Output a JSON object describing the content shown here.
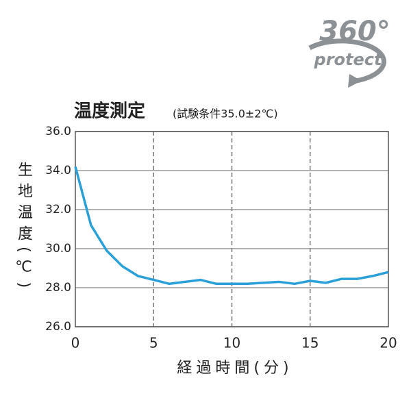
{
  "chart_data": {
    "type": "line",
    "title": "温度測定",
    "subtitle": "(試験条件35.0±2℃)",
    "y_label": "生地温度(℃)",
    "x_label": "経過時間(分)",
    "x": [
      0,
      1,
      2,
      3,
      4,
      5,
      6,
      7,
      8,
      9,
      10,
      11,
      12,
      13,
      14,
      15,
      16,
      17,
      18,
      19,
      20
    ],
    "series": [
      {
        "name": "生地温度",
        "color": "#2a9fd8",
        "values": [
          34.2,
          31.2,
          29.9,
          29.1,
          28.6,
          28.4,
          28.2,
          28.3,
          28.4,
          28.2,
          28.2,
          28.2,
          28.25,
          28.3,
          28.2,
          28.35,
          28.25,
          28.45,
          28.45,
          28.6,
          28.8
        ]
      }
    ],
    "xlim": [
      0,
      20
    ],
    "xticks": [
      0,
      5,
      10,
      15,
      20
    ],
    "ylim": [
      26,
      36
    ],
    "yticks": [
      {
        "value": 26,
        "label": "26.0"
      },
      {
        "value": 28,
        "label": "28.0"
      },
      {
        "value": 30,
        "label": "30.0"
      },
      {
        "value": 32,
        "label": "32.0"
      },
      {
        "value": 34,
        "label": "34.0"
      },
      {
        "value": 36,
        "label": "36.0"
      }
    ],
    "grid": true
  },
  "logo": {
    "text": "360°",
    "subtext": "protect"
  }
}
